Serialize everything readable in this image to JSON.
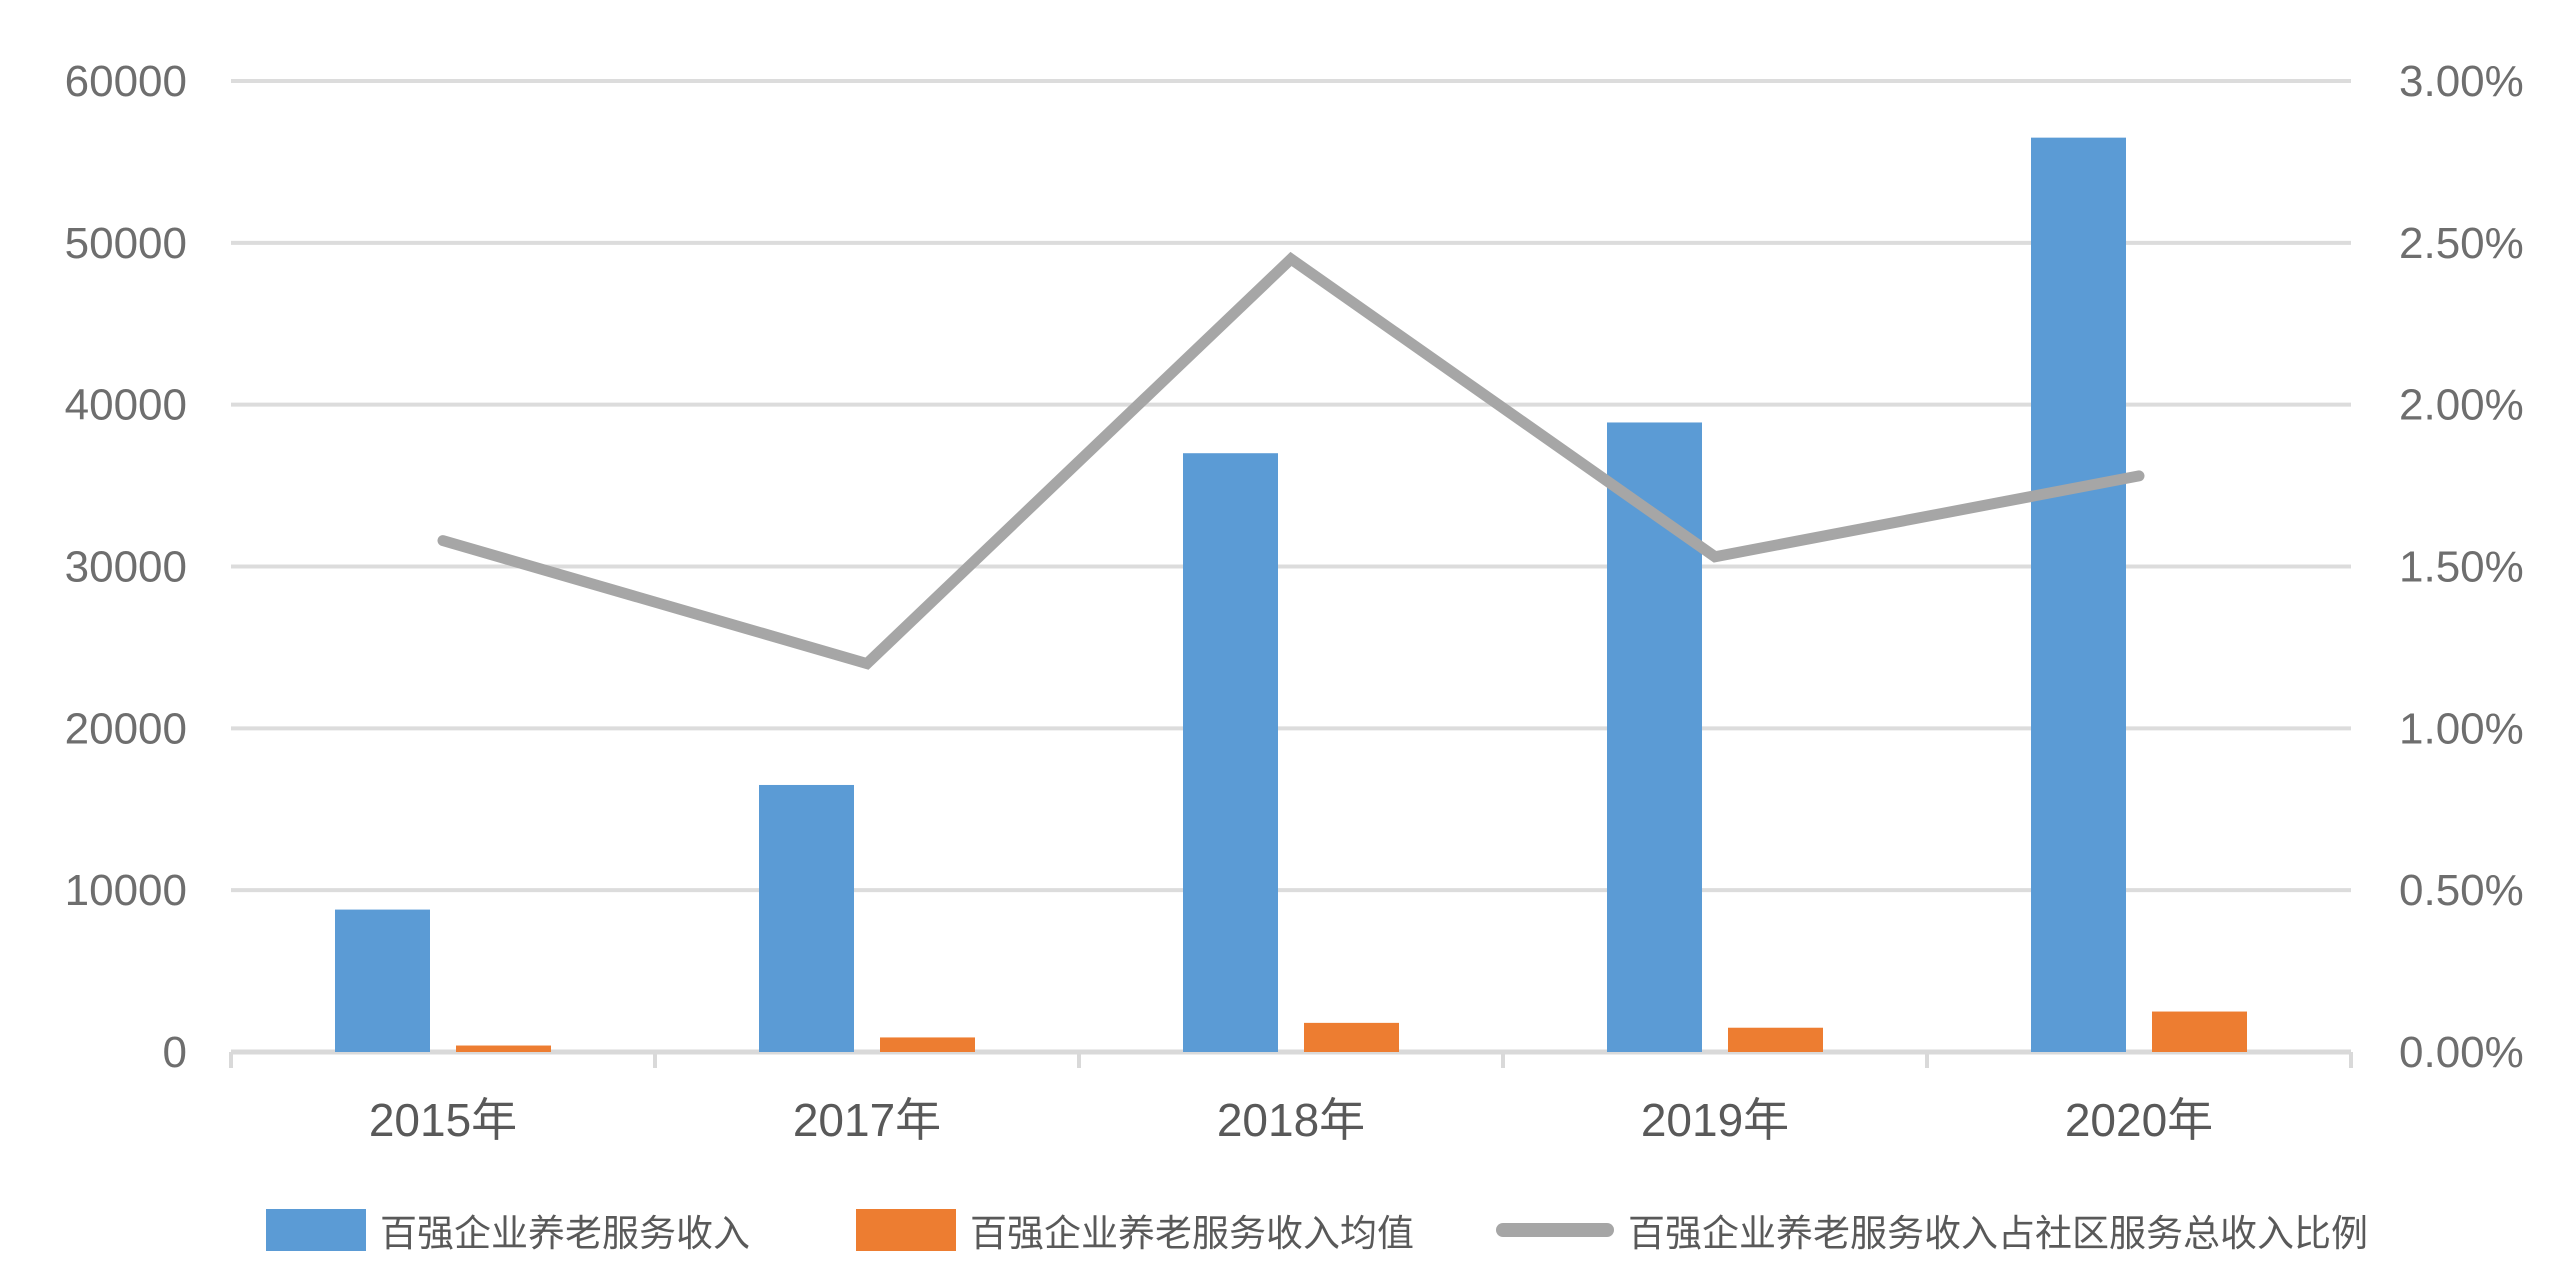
{
  "chart_data": {
    "type": "bar",
    "subtype": "clustered-bar-with-line-dual-axis",
    "title": "",
    "categories": [
      "2015年",
      "2017年",
      "2018年",
      "2019年",
      "2020年"
    ],
    "series": [
      {
        "name": "百强企业养老服务收入",
        "type": "bar",
        "axis": "left",
        "color": "#5B9BD5",
        "values": [
          8800,
          16500,
          37000,
          38900,
          56500
        ]
      },
      {
        "name": "百强企业养老服务收入均值",
        "type": "bar",
        "axis": "left",
        "color": "#ED7D31",
        "values": [
          400,
          900,
          1800,
          1500,
          2500
        ]
      },
      {
        "name": "百强企业养老服务收入占社区服务总收入比例",
        "type": "line",
        "axis": "right",
        "color": "#A6A6A6",
        "values_percent": [
          1.58,
          1.2,
          2.45,
          1.53,
          1.78
        ]
      }
    ],
    "left_axis": {
      "min": 0,
      "max": 60000,
      "step": 10000,
      "tick_labels": [
        "0",
        "10000",
        "20000",
        "30000",
        "40000",
        "50000",
        "60000"
      ]
    },
    "right_axis": {
      "min": 0,
      "max": 3,
      "step": 0.5,
      "tick_labels": [
        "0.00%",
        "0.50%",
        "1.00%",
        "1.50%",
        "2.00%",
        "2.50%",
        "3.00%"
      ]
    },
    "grid": true,
    "legend_position": "bottom",
    "colors": {
      "gridline": "#DCDCDC",
      "axis_line": "#D9D9D9",
      "tick_label": "#6e6e6e",
      "category_label": "#595959",
      "legend_text": "#595959",
      "background": "#FFFFFF"
    }
  }
}
